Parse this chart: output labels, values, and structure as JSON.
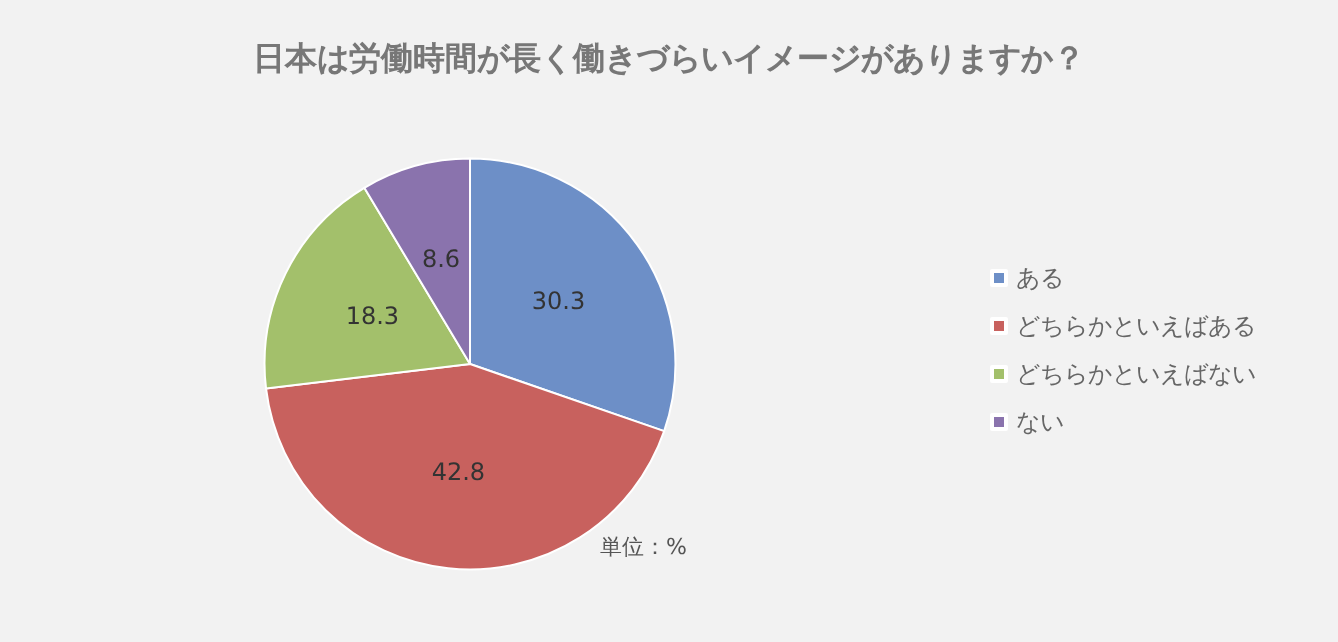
{
  "chart_data": {
    "type": "pie",
    "title": "日本は労働時間が長く働きづらいイメージがありますか？",
    "categories": [
      "ある",
      "どちらかといえばある",
      "どちらかといえばない",
      "ない"
    ],
    "values": [
      30.3,
      42.8,
      18.3,
      8.6
    ],
    "colors": [
      "#6d8fc7",
      "#c8615e",
      "#a3c06b",
      "#8a73ad"
    ],
    "data_labels": true,
    "legend": "right",
    "annotations": [
      "単位：%"
    ]
  }
}
